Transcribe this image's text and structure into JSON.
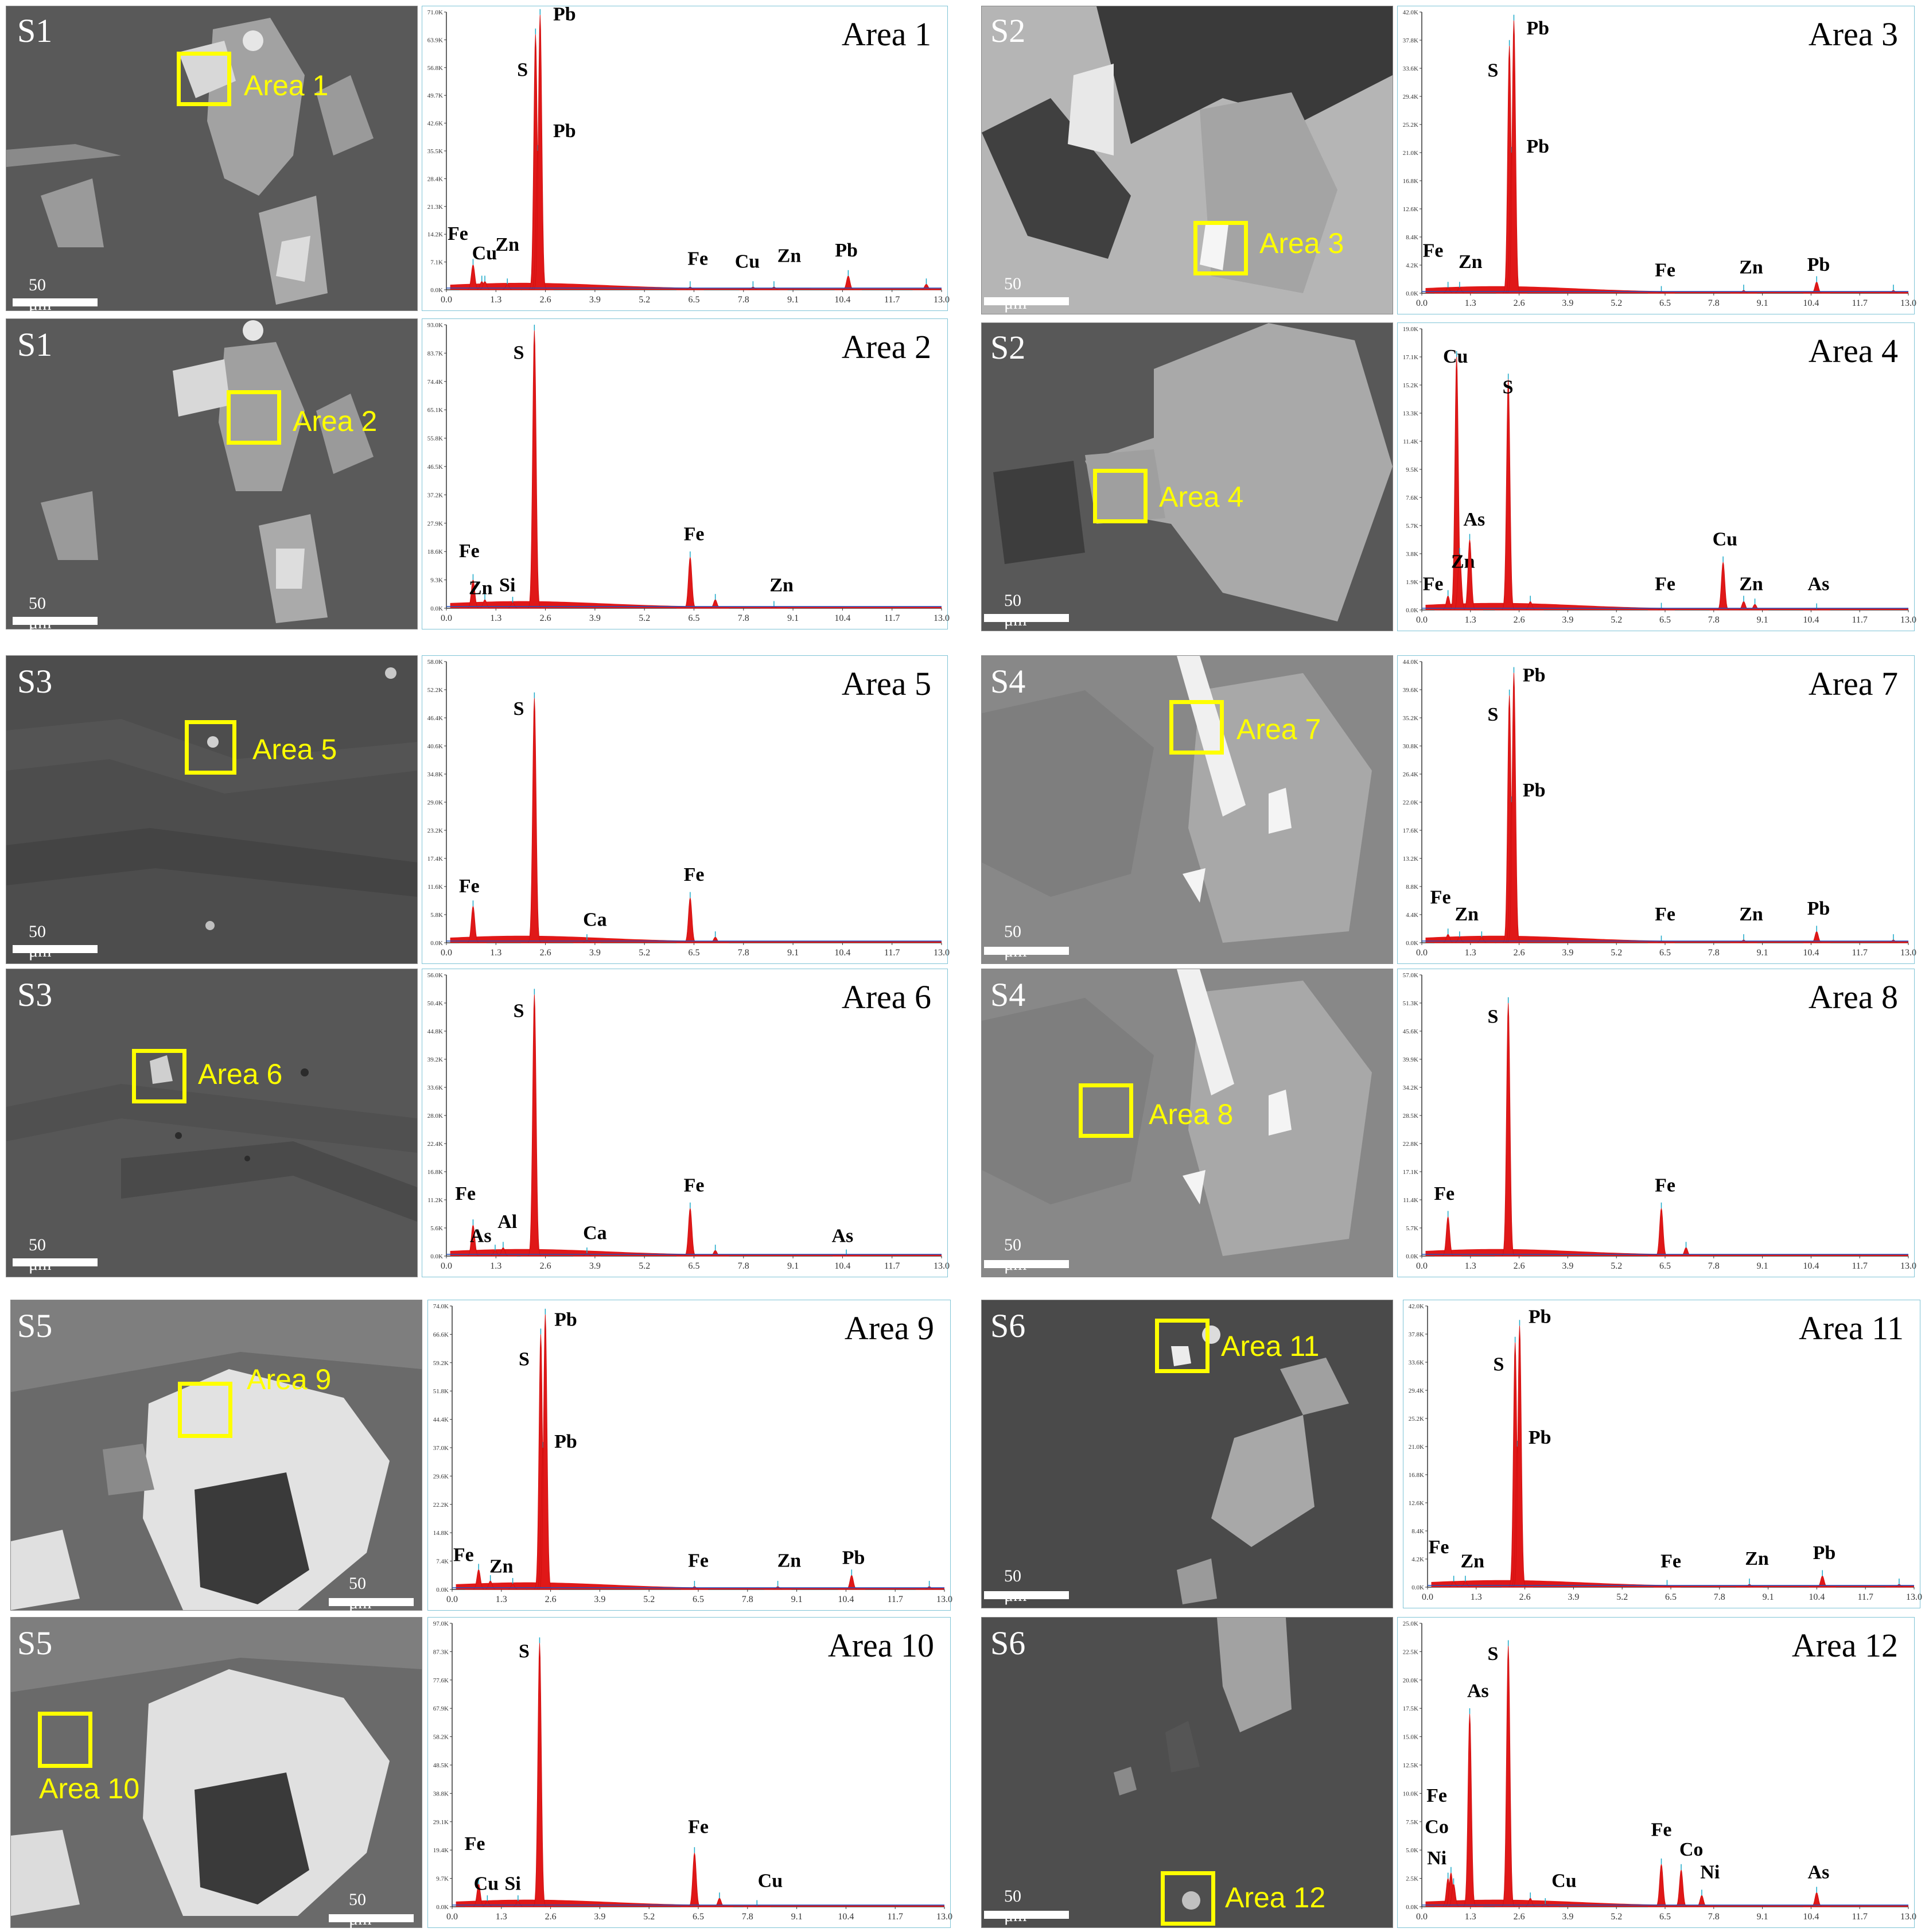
{
  "scale_text": "50 μm",
  "panels": [
    {
      "sample": "S1",
      "area": "Area 1",
      "ylabels": [
        "0.0K",
        "7.1K",
        "14.2K",
        "21.3K",
        "28.4K",
        "35.5K",
        "42.6K",
        "49.7K",
        "56.8K",
        "63.9K",
        "71.0K"
      ],
      "peaks": [
        {
          "x": 0.7,
          "h": 0.09,
          "lbl": "Fe",
          "lx": 0.3,
          "ly": 0.18
        },
        {
          "x": 0.93,
          "h": 0.03,
          "lbl": "Cu",
          "lx": 1.0,
          "ly": 0.11
        },
        {
          "x": 1.01,
          "h": 0.03,
          "lbl": "Zn",
          "lx": 1.6,
          "ly": 0.14
        },
        {
          "x": 1.6,
          "h": 0.02,
          "lbl": ""
        },
        {
          "x": 2.34,
          "h": 0.92,
          "lbl": "S",
          "lx": 2.0,
          "ly": 0.77
        },
        {
          "x": 2.4,
          "h": 0.5,
          "lbl": "Pb",
          "lx": 3.1,
          "ly": 0.55
        },
        {
          "x": 2.46,
          "h": 0.99,
          "lbl": "Pb",
          "lx": 3.1,
          "ly": 0.97
        },
        {
          "x": 6.4,
          "h": 0.01,
          "lbl": "Fe",
          "lx": 6.6,
          "ly": 0.09
        },
        {
          "x": 8.05,
          "h": 0.01,
          "lbl": "Cu",
          "lx": 7.9,
          "ly": 0.08
        },
        {
          "x": 8.6,
          "h": 0.01,
          "lbl": "Zn",
          "lx": 9.0,
          "ly": 0.1
        },
        {
          "x": 10.55,
          "h": 0.05,
          "lbl": "Pb",
          "lx": 10.5,
          "ly": 0.12
        },
        {
          "x": 12.6,
          "h": 0.02,
          "lbl": ""
        }
      ]
    },
    {
      "sample": "S1",
      "area": "Area 2",
      "ylabels": [
        "0.0K",
        "9.3K",
        "18.6K",
        "27.9K",
        "37.2K",
        "46.5K",
        "55.8K",
        "65.1K",
        "74.4K",
        "83.7K",
        "93.0K"
      ],
      "peaks": [
        {
          "x": 0.7,
          "h": 0.1,
          "lbl": "Fe",
          "lx": 0.6,
          "ly": 0.18
        },
        {
          "x": 1.01,
          "h": 0.03,
          "lbl": "Zn",
          "lx": 0.9,
          "ly": 0.05
        },
        {
          "x": 1.74,
          "h": 0.02,
          "lbl": "Si",
          "lx": 1.6,
          "ly": 0.06
        },
        {
          "x": 2.31,
          "h": 0.98,
          "lbl": "S",
          "lx": 1.9,
          "ly": 0.88
        },
        {
          "x": 6.4,
          "h": 0.18,
          "lbl": "Fe",
          "lx": 6.5,
          "ly": 0.24
        },
        {
          "x": 7.06,
          "h": 0.03,
          "lbl": ""
        },
        {
          "x": 8.6,
          "h": 0.005,
          "lbl": "Zn",
          "lx": 8.8,
          "ly": 0.06
        }
      ]
    },
    {
      "sample": "S3",
      "area": "Area 5",
      "ylabels": [
        "0.0K",
        "5.8K",
        "11.6K",
        "17.4K",
        "23.2K",
        "29.0K",
        "34.8K",
        "40.6K",
        "46.4K",
        "52.2K",
        "58.0K"
      ],
      "peaks": [
        {
          "x": 0.7,
          "h": 0.13,
          "lbl": "Fe",
          "lx": 0.6,
          "ly": 0.18
        },
        {
          "x": 2.31,
          "h": 0.87,
          "lbl": "S",
          "lx": 1.9,
          "ly": 0.81
        },
        {
          "x": 3.69,
          "h": 0.01,
          "lbl": "Ca",
          "lx": 3.9,
          "ly": 0.06
        },
        {
          "x": 6.4,
          "h": 0.16,
          "lbl": "Fe",
          "lx": 6.5,
          "ly": 0.22
        },
        {
          "x": 7.06,
          "h": 0.02,
          "lbl": ""
        }
      ]
    },
    {
      "sample": "S3",
      "area": "Area 6",
      "ylabels": [
        "0.0K",
        "5.6K",
        "11.2K",
        "16.8K",
        "22.4K",
        "28.0K",
        "33.6K",
        "39.2K",
        "44.8K",
        "50.4K",
        "56.0K"
      ],
      "peaks": [
        {
          "x": 0.7,
          "h": 0.11,
          "lbl": "Fe",
          "lx": 0.5,
          "ly": 0.2
        },
        {
          "x": 1.28,
          "h": 0.02,
          "lbl": "As",
          "lx": 0.9,
          "ly": 0.05
        },
        {
          "x": 1.49,
          "h": 0.03,
          "lbl": "Al",
          "lx": 1.6,
          "ly": 0.1
        },
        {
          "x": 2.31,
          "h": 0.93,
          "lbl": "S",
          "lx": 1.9,
          "ly": 0.85
        },
        {
          "x": 3.69,
          "h": 0.01,
          "lbl": "Ca",
          "lx": 3.9,
          "ly": 0.06
        },
        {
          "x": 6.4,
          "h": 0.17,
          "lbl": "Fe",
          "lx": 6.5,
          "ly": 0.23
        },
        {
          "x": 7.06,
          "h": 0.02,
          "lbl": ""
        },
        {
          "x": 10.5,
          "h": 0.003,
          "lbl": "As",
          "lx": 10.4,
          "ly": 0.05
        }
      ]
    },
    {
      "sample": "S5",
      "area": "Area 9",
      "ylabels": [
        "0.0K",
        "7.4K",
        "14.8K",
        "22.2K",
        "29.6K",
        "37.0K",
        "44.4K",
        "51.8K",
        "59.2K",
        "66.6K",
        "74.0K"
      ],
      "peaks": [
        {
          "x": 0.7,
          "h": 0.07,
          "lbl": "Fe",
          "lx": 0.3,
          "ly": 0.1
        },
        {
          "x": 1.01,
          "h": 0.03,
          "lbl": "Zn",
          "lx": 1.3,
          "ly": 0.06
        },
        {
          "x": 1.6,
          "h": 0.02,
          "lbl": ""
        },
        {
          "x": 2.34,
          "h": 0.9,
          "lbl": "S",
          "lx": 1.9,
          "ly": 0.79
        },
        {
          "x": 2.4,
          "h": 0.5,
          "lbl": "Pb",
          "lx": 3.0,
          "ly": 0.5
        },
        {
          "x": 2.46,
          "h": 0.97,
          "lbl": "Pb",
          "lx": 3.0,
          "ly": 0.93
        },
        {
          "x": 6.4,
          "h": 0.01,
          "lbl": "Fe",
          "lx": 6.5,
          "ly": 0.08
        },
        {
          "x": 8.6,
          "h": 0.01,
          "lbl": "Zn",
          "lx": 8.9,
          "ly": 0.08
        },
        {
          "x": 10.55,
          "h": 0.05,
          "lbl": "Pb",
          "lx": 10.6,
          "ly": 0.09
        },
        {
          "x": 12.6,
          "h": 0.01,
          "lbl": ""
        }
      ]
    },
    {
      "sample": "S5",
      "area": "Area 10",
      "ylabels": [
        "0.0K",
        "9.7K",
        "19.4K",
        "29.1K",
        "38.8K",
        "48.5K",
        "58.2K",
        "67.9K",
        "77.6K",
        "87.3K",
        "97.0K"
      ],
      "peaks": [
        {
          "x": 0.7,
          "h": 0.08,
          "lbl": "Fe",
          "lx": 0.6,
          "ly": 0.2
        },
        {
          "x": 0.93,
          "h": 0.02,
          "lbl": "Cu",
          "lx": 0.9,
          "ly": 0.06
        },
        {
          "x": 1.74,
          "h": 0.02,
          "lbl": "Si",
          "lx": 1.6,
          "ly": 0.06
        },
        {
          "x": 2.31,
          "h": 0.93,
          "lbl": "S",
          "lx": 1.9,
          "ly": 0.88
        },
        {
          "x": 6.4,
          "h": 0.19,
          "lbl": "Fe",
          "lx": 6.5,
          "ly": 0.26
        },
        {
          "x": 7.06,
          "h": 0.03,
          "lbl": ""
        },
        {
          "x": 8.05,
          "h": 0.003,
          "lbl": "Cu",
          "lx": 8.4,
          "ly": 0.07
        }
      ]
    },
    {
      "sample": "S2",
      "area": "Area 3",
      "ylabels": [
        "0.0K",
        "4.2K",
        "8.4K",
        "12.6K",
        "16.8K",
        "21.0K",
        "25.2K",
        "29.4K",
        "33.6K",
        "37.8K",
        "42.0K"
      ],
      "peaks": [
        {
          "x": 0.7,
          "h": 0.02,
          "lbl": "Fe",
          "lx": 0.3,
          "ly": 0.13
        },
        {
          "x": 1.01,
          "h": 0.02,
          "lbl": "Zn",
          "lx": 1.3,
          "ly": 0.09
        },
        {
          "x": 2.34,
          "h": 0.88,
          "lbl": "S",
          "lx": 1.9,
          "ly": 0.77
        },
        {
          "x": 2.4,
          "h": 0.5,
          "lbl": "Pb",
          "lx": 3.1,
          "ly": 0.5
        },
        {
          "x": 2.46,
          "h": 0.97,
          "lbl": "Pb",
          "lx": 3.1,
          "ly": 0.92
        },
        {
          "x": 6.4,
          "h": 0.005,
          "lbl": "Fe",
          "lx": 6.5,
          "ly": 0.06
        },
        {
          "x": 8.6,
          "h": 0.01,
          "lbl": "Zn",
          "lx": 8.8,
          "ly": 0.07
        },
        {
          "x": 10.55,
          "h": 0.04,
          "lbl": "Pb",
          "lx": 10.6,
          "ly": 0.08
        },
        {
          "x": 12.6,
          "h": 0.01,
          "lbl": ""
        }
      ]
    },
    {
      "sample": "S2",
      "area": "Area 4",
      "ylabels": [
        "0.0K",
        "1.9K",
        "3.8K",
        "5.7K",
        "7.6K",
        "9.5K",
        "11.4K",
        "13.3K",
        "15.2K",
        "17.1K",
        "19.0K"
      ],
      "peaks": [
        {
          "x": 0.7,
          "h": 0.05,
          "lbl": "Fe",
          "lx": 0.3,
          "ly": 0.07
        },
        {
          "x": 0.93,
          "h": 0.9,
          "lbl": "Cu",
          "lx": 0.9,
          "ly": 0.88
        },
        {
          "x": 1.01,
          "h": 0.2,
          "lbl": "Zn",
          "lx": 1.1,
          "ly": 0.15
        },
        {
          "x": 1.28,
          "h": 0.25,
          "lbl": "As",
          "lx": 1.4,
          "ly": 0.3
        },
        {
          "x": 2.31,
          "h": 0.82,
          "lbl": "S",
          "lx": 2.3,
          "ly": 0.77
        },
        {
          "x": 2.9,
          "h": 0.03,
          "lbl": ""
        },
        {
          "x": 6.4,
          "h": 0.005,
          "lbl": "Fe",
          "lx": 6.5,
          "ly": 0.07
        },
        {
          "x": 8.05,
          "h": 0.17,
          "lbl": "Cu",
          "lx": 8.1,
          "ly": 0.23
        },
        {
          "x": 8.6,
          "h": 0.03,
          "lbl": "Zn",
          "lx": 8.8,
          "ly": 0.07
        },
        {
          "x": 8.9,
          "h": 0.02,
          "lbl": ""
        },
        {
          "x": 10.55,
          "h": 0.003,
          "lbl": "As",
          "lx": 10.6,
          "ly": 0.07
        }
      ]
    },
    {
      "sample": "S4",
      "area": "Area 7",
      "ylabels": [
        "0.0K",
        "4.4K",
        "8.8K",
        "13.2K",
        "17.6K",
        "22.0K",
        "26.4K",
        "30.8K",
        "35.2K",
        "39.6K",
        "44.0K"
      ],
      "peaks": [
        {
          "x": 0.7,
          "h": 0.03,
          "lbl": "Fe",
          "lx": 0.5,
          "ly": 0.14
        },
        {
          "x": 1.01,
          "h": 0.02,
          "lbl": "Zn",
          "lx": 1.2,
          "ly": 0.08
        },
        {
          "x": 1.6,
          "h": 0.02,
          "lbl": ""
        },
        {
          "x": 2.34,
          "h": 0.88,
          "lbl": "S",
          "lx": 1.9,
          "ly": 0.79
        },
        {
          "x": 2.4,
          "h": 0.5,
          "lbl": "Pb",
          "lx": 3.0,
          "ly": 0.52
        },
        {
          "x": 2.46,
          "h": 0.96,
          "lbl": "Pb",
          "lx": 3.0,
          "ly": 0.93
        },
        {
          "x": 6.4,
          "h": 0.005,
          "lbl": "Fe",
          "lx": 6.5,
          "ly": 0.08
        },
        {
          "x": 8.6,
          "h": 0.01,
          "lbl": "Zn",
          "lx": 8.8,
          "ly": 0.08
        },
        {
          "x": 10.55,
          "h": 0.04,
          "lbl": "Pb",
          "lx": 10.6,
          "ly": 0.1
        },
        {
          "x": 12.6,
          "h": 0.01,
          "lbl": ""
        }
      ]
    },
    {
      "sample": "S4",
      "area": "Area 8",
      "ylabels": [
        "0.0K",
        "5.7K",
        "11.4K",
        "17.1K",
        "22.8K",
        "28.5K",
        "34.2K",
        "39.9K",
        "45.6K",
        "51.3K",
        "57.0K"
      ],
      "peaks": [
        {
          "x": 0.7,
          "h": 0.14,
          "lbl": "Fe",
          "lx": 0.6,
          "ly": 0.2
        },
        {
          "x": 2.31,
          "h": 0.9,
          "lbl": "S",
          "lx": 1.9,
          "ly": 0.83
        },
        {
          "x": 6.4,
          "h": 0.17,
          "lbl": "Fe",
          "lx": 6.5,
          "ly": 0.23
        },
        {
          "x": 7.06,
          "h": 0.03,
          "lbl": ""
        }
      ]
    },
    {
      "sample": "S6",
      "area": "Area 11",
      "ylabels": [
        "0.0K",
        "4.2K",
        "8.4K",
        "12.6K",
        "16.8K",
        "21.0K",
        "25.2K",
        "29.4K",
        "33.6K",
        "37.8K",
        "42.0K"
      ],
      "peaks": [
        {
          "x": 0.7,
          "h": 0.02,
          "lbl": "Fe",
          "lx": 0.3,
          "ly": 0.12
        },
        {
          "x": 1.01,
          "h": 0.02,
          "lbl": "Zn",
          "lx": 1.2,
          "ly": 0.07
        },
        {
          "x": 2.34,
          "h": 0.87,
          "lbl": "S",
          "lx": 1.9,
          "ly": 0.77
        },
        {
          "x": 2.4,
          "h": 0.5,
          "lbl": "Pb",
          "lx": 3.0,
          "ly": 0.51
        },
        {
          "x": 2.46,
          "h": 0.93,
          "lbl": "Pb",
          "lx": 3.0,
          "ly": 0.94
        },
        {
          "x": 6.4,
          "h": 0.005,
          "lbl": "Fe",
          "lx": 6.5,
          "ly": 0.07
        },
        {
          "x": 8.6,
          "h": 0.01,
          "lbl": "Zn",
          "lx": 8.8,
          "ly": 0.08
        },
        {
          "x": 10.55,
          "h": 0.04,
          "lbl": "Pb",
          "lx": 10.6,
          "ly": 0.1
        },
        {
          "x": 12.6,
          "h": 0.01,
          "lbl": ""
        }
      ]
    },
    {
      "sample": "S6",
      "area": "Area 12",
      "ylabels": [
        "0.0K",
        "2.5K",
        "5.0K",
        "7.5K",
        "10.0K",
        "12.5K",
        "15.0K",
        "17.5K",
        "20.0K",
        "22.5K",
        "25.0K"
      ],
      "peaks": [
        {
          "x": 0.7,
          "h": 0.1,
          "lbl": "Fe",
          "lx": 0.4,
          "ly": 0.37
        },
        {
          "x": 0.78,
          "h": 0.12,
          "lbl": "Co",
          "lx": 0.4,
          "ly": 0.26
        },
        {
          "x": 0.85,
          "h": 0.08,
          "lbl": "Ni",
          "lx": 0.4,
          "ly": 0.15
        },
        {
          "x": 1.28,
          "h": 0.68,
          "lbl": "As",
          "lx": 1.5,
          "ly": 0.74
        },
        {
          "x": 2.31,
          "h": 0.92,
          "lbl": "S",
          "lx": 1.9,
          "ly": 0.87
        },
        {
          "x": 2.9,
          "h": 0.03,
          "lbl": ""
        },
        {
          "x": 3.3,
          "h": 0.01,
          "lbl": "Cu",
          "lx": 3.8,
          "ly": 0.07
        },
        {
          "x": 6.4,
          "h": 0.15,
          "lbl": "Fe",
          "lx": 6.4,
          "ly": 0.25
        },
        {
          "x": 6.93,
          "h": 0.13,
          "lbl": "Co",
          "lx": 7.2,
          "ly": 0.18
        },
        {
          "x": 7.48,
          "h": 0.04,
          "lbl": "Ni",
          "lx": 7.7,
          "ly": 0.1
        },
        {
          "x": 10.55,
          "h": 0.05,
          "lbl": "As",
          "lx": 10.6,
          "ly": 0.1
        }
      ]
    }
  ],
  "xticks": [
    "0.0",
    "1.3",
    "2.6",
    "3.9",
    "5.2",
    "6.5",
    "7.8",
    "9.1",
    "10.4",
    "11.7",
    "13.0"
  ]
}
